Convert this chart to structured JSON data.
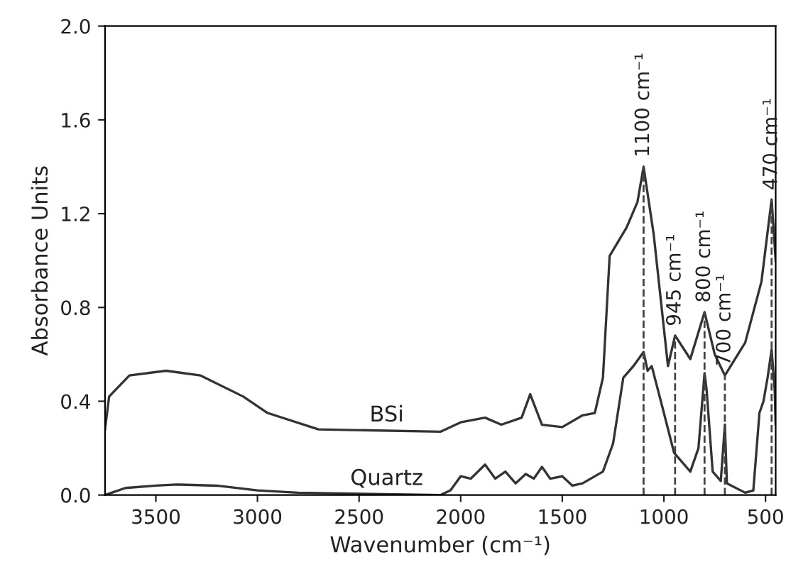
{
  "chart_data": {
    "type": "line",
    "xlabel": "Wavenumber (cm⁻¹)",
    "ylabel": "Absorbance Units",
    "xlim": [
      3750,
      450
    ],
    "ylim": [
      0.0,
      2.0
    ],
    "xticks": [
      3500,
      3000,
      2500,
      2000,
      1500,
      1000,
      500
    ],
    "yticks": [
      {
        "value": 0.0,
        "label": "0.0"
      },
      {
        "value": 0.4,
        "label": "0.4"
      },
      {
        "value": 0.8,
        "label": "0.8"
      },
      {
        "value": 1.2,
        "label": "1.2"
      },
      {
        "value": 1.6,
        "label": "1.6"
      },
      {
        "value": 2.0,
        "label": "2.0"
      }
    ],
    "grid": false,
    "legend": false,
    "marker": "none",
    "line_style": "solid",
    "series": [
      {
        "name": "BSi",
        "color": "#333333",
        "x": [
          3750,
          3730,
          3630,
          3450,
          3280,
          3070,
          2950,
          2700,
          2100,
          2000,
          1880,
          1800,
          1700,
          1658,
          1600,
          1500,
          1400,
          1340,
          1300,
          1267,
          1184,
          1130,
          1100,
          1050,
          1000,
          980,
          945,
          900,
          870,
          800,
          750,
          700,
          600,
          520,
          470,
          450
        ],
        "values": [
          0.28,
          0.42,
          0.51,
          0.53,
          0.51,
          0.42,
          0.35,
          0.28,
          0.27,
          0.31,
          0.33,
          0.3,
          0.33,
          0.43,
          0.3,
          0.29,
          0.34,
          0.35,
          0.5,
          1.02,
          1.14,
          1.25,
          1.4,
          1.11,
          0.71,
          0.55,
          0.68,
          0.62,
          0.58,
          0.78,
          0.6,
          0.51,
          0.65,
          0.91,
          1.26,
          1.0
        ]
      },
      {
        "name": "Quartz",
        "color": "#333333",
        "x": [
          3750,
          3650,
          3500,
          3400,
          3200,
          3000,
          2800,
          2100,
          2050,
          2000,
          1950,
          1880,
          1830,
          1780,
          1730,
          1680,
          1640,
          1600,
          1560,
          1500,
          1450,
          1400,
          1300,
          1250,
          1200,
          1150,
          1100,
          1080,
          1060,
          1000,
          950,
          870,
          830,
          800,
          790,
          760,
          720,
          700,
          690,
          600,
          560,
          530,
          510,
          490,
          470,
          455,
          450
        ],
        "values": [
          0.0,
          0.03,
          0.04,
          0.045,
          0.04,
          0.02,
          0.01,
          0.0,
          0.02,
          0.08,
          0.07,
          0.13,
          0.07,
          0.1,
          0.05,
          0.09,
          0.07,
          0.12,
          0.07,
          0.08,
          0.04,
          0.05,
          0.1,
          0.22,
          0.5,
          0.55,
          0.61,
          0.53,
          0.55,
          0.35,
          0.18,
          0.1,
          0.2,
          0.52,
          0.45,
          0.1,
          0.06,
          0.3,
          0.05,
          0.01,
          0.02,
          0.35,
          0.4,
          0.5,
          0.62,
          0.45,
          0.3
        ]
      }
    ],
    "ref_lines": [
      {
        "axis": "x",
        "value": 1100,
        "label": "1100 cm⁻¹",
        "line_style": "dashed",
        "color": "#444444"
      },
      {
        "axis": "x",
        "value": 945,
        "label": "945 cm⁻¹",
        "line_style": "dashed",
        "color": "#444444"
      },
      {
        "axis": "x",
        "value": 800,
        "label": "800 cm⁻¹",
        "line_style": "dashed",
        "color": "#444444"
      },
      {
        "axis": "x",
        "value": 700,
        "label": "700 cm⁻¹",
        "line_style": "dashed",
        "color": "#444444"
      },
      {
        "axis": "x",
        "value": 470,
        "label": "470 cm⁻¹",
        "line_style": "dashed",
        "color": "#444444"
      }
    ]
  }
}
